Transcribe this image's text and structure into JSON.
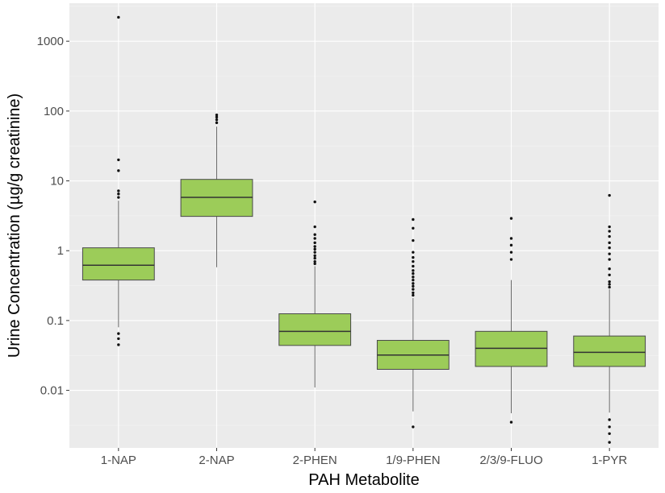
{
  "chart_data": {
    "type": "box",
    "title": "",
    "xlabel": "PAH Metabolite",
    "ylabel": "Urine Concentration (µg/g creatinine)",
    "y_scale": "log10",
    "ylim": [
      0.0015,
      3500
    ],
    "y_ticks": [
      {
        "value": 0.01,
        "label": "0.01"
      },
      {
        "value": 0.1,
        "label": "0.1"
      },
      {
        "value": 1,
        "label": "1"
      },
      {
        "value": 10,
        "label": "10"
      },
      {
        "value": 100,
        "label": "100"
      },
      {
        "value": 1000,
        "label": "1000"
      }
    ],
    "grid": true,
    "legend": "none",
    "box_fill": "#9ccc59",
    "box_stroke": "#4a4a4a",
    "panel_background": "#ebebeb",
    "categories": [
      "1-NAP",
      "2-NAP",
      "2-PHEN",
      "1/9-PHEN",
      "2/3/9-FLUO",
      "1-PYR"
    ],
    "boxes": [
      {
        "label": "1-NAP",
        "whisker_low": 0.08,
        "q1": 0.38,
        "median": 0.62,
        "q3": 1.1,
        "whisker_high": 5.2,
        "outliers": [
          0.065,
          0.055,
          0.045,
          5.8,
          6.5,
          7.2,
          14,
          20,
          2200
        ]
      },
      {
        "label": "2-NAP",
        "whisker_low": 0.58,
        "q1": 3.1,
        "median": 5.8,
        "q3": 10.5,
        "whisker_high": 60,
        "outliers": [
          68,
          75,
          82,
          88
        ]
      },
      {
        "label": "2-PHEN",
        "whisker_low": 0.011,
        "q1": 0.044,
        "median": 0.07,
        "q3": 0.125,
        "whisker_high": 0.6,
        "outliers": [
          0.65,
          0.7,
          0.78,
          0.85,
          0.95,
          1.05,
          1.15,
          1.3,
          1.5,
          1.7,
          2.2,
          5
        ]
      },
      {
        "label": "1/9-PHEN",
        "whisker_low": 0.005,
        "q1": 0.02,
        "median": 0.032,
        "q3": 0.052,
        "whisker_high": 0.21,
        "outliers": [
          0.003,
          0.23,
          0.25,
          0.28,
          0.31,
          0.34,
          0.38,
          0.42,
          0.47,
          0.52,
          0.6,
          0.7,
          0.8,
          0.95,
          1.4,
          2.1,
          2.8
        ]
      },
      {
        "label": "2/3/9-FLUO",
        "whisker_low": 0.0047,
        "q1": 0.022,
        "median": 0.04,
        "q3": 0.07,
        "whisker_high": 0.38,
        "outliers": [
          0.0035,
          0.75,
          0.95,
          1.2,
          1.5,
          2.9
        ]
      },
      {
        "label": "1-PYR",
        "whisker_low": 0.0048,
        "q1": 0.022,
        "median": 0.035,
        "q3": 0.06,
        "whisker_high": 0.28,
        "outliers": [
          0.0038,
          0.003,
          0.0024,
          0.0018,
          0.3,
          0.33,
          0.36,
          0.45,
          0.55,
          0.75,
          0.9,
          1.1,
          1.3,
          1.6,
          1.9,
          2.2,
          6.2
        ]
      }
    ]
  }
}
